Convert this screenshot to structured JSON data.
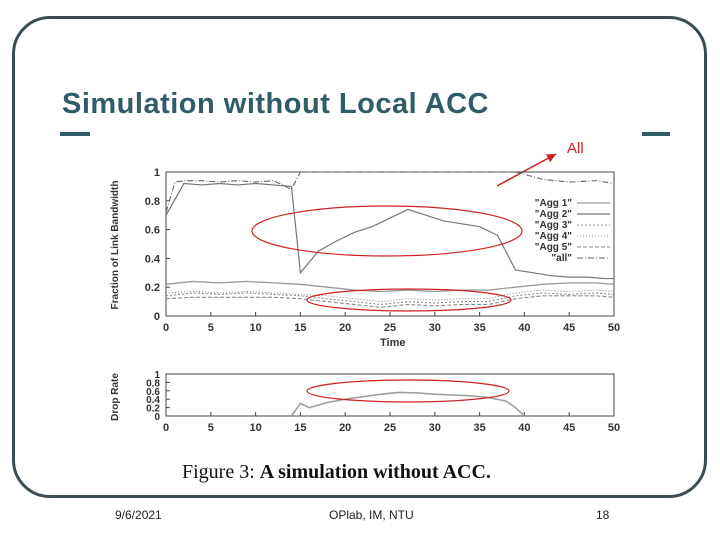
{
  "slide": {
    "title": "Simulation without Local ACC",
    "callout_label": "All",
    "caption_prefix": "Figure 3:",
    "caption_text": "A simulation without ACC.",
    "footer_date": "9/6/2021",
    "footer_center": "OPlab, IM, NTU",
    "page_number": "18"
  },
  "chart_data": [
    {
      "type": "line",
      "ylabel": "Fraction of Link Bandwidth",
      "xlabel": "Time",
      "xlim": [
        0,
        50
      ],
      "ylim": [
        0,
        1
      ],
      "xticks": [
        0,
        5,
        10,
        15,
        20,
        25,
        30,
        35,
        40,
        45,
        50
      ],
      "yticks": [
        0,
        0.2,
        0.4,
        0.6,
        0.8,
        1
      ],
      "legend": "top-right",
      "series": [
        {
          "name": "\"Agg 1\"",
          "x": [
            0,
            3,
            6,
            9,
            12,
            15,
            18,
            21,
            24,
            27,
            30,
            33,
            36,
            39,
            42,
            45,
            48,
            50
          ],
          "y": [
            0.22,
            0.24,
            0.23,
            0.24,
            0.23,
            0.22,
            0.2,
            0.18,
            0.17,
            0.18,
            0.17,
            0.18,
            0.18,
            0.2,
            0.22,
            0.23,
            0.23,
            0.22
          ]
        },
        {
          "name": "\"Agg 2\"",
          "x": [
            0,
            2,
            4,
            6,
            8,
            10,
            12,
            14,
            15,
            17,
            19,
            21,
            23,
            25,
            27,
            29,
            31,
            33,
            35,
            37,
            39,
            41,
            43,
            45,
            47,
            49,
            50
          ],
          "y": [
            0.7,
            0.92,
            0.91,
            0.92,
            0.91,
            0.92,
            0.91,
            0.9,
            0.3,
            0.45,
            0.52,
            0.58,
            0.62,
            0.68,
            0.74,
            0.7,
            0.66,
            0.64,
            0.62,
            0.56,
            0.32,
            0.3,
            0.28,
            0.27,
            0.27,
            0.26,
            0.26
          ]
        },
        {
          "name": "\"Agg 3\"",
          "x": [
            0,
            3,
            6,
            9,
            12,
            15,
            18,
            21,
            24,
            27,
            30,
            33,
            36,
            39,
            42,
            45,
            48,
            50
          ],
          "y": [
            0.14,
            0.16,
            0.15,
            0.16,
            0.15,
            0.14,
            0.12,
            0.1,
            0.08,
            0.1,
            0.09,
            0.1,
            0.1,
            0.14,
            0.16,
            0.15,
            0.16,
            0.15
          ]
        },
        {
          "name": "\"Agg 4\"",
          "x": [
            0,
            3,
            6,
            9,
            12,
            15,
            18,
            21,
            24,
            27,
            30,
            33,
            36,
            39,
            42,
            45,
            48,
            50
          ],
          "y": [
            0.16,
            0.17,
            0.16,
            0.17,
            0.16,
            0.15,
            0.14,
            0.12,
            0.1,
            0.12,
            0.11,
            0.12,
            0.12,
            0.16,
            0.18,
            0.17,
            0.18,
            0.17
          ]
        },
        {
          "name": "\"Agg 5\"",
          "x": [
            0,
            3,
            6,
            9,
            12,
            15,
            18,
            21,
            24,
            27,
            30,
            33,
            36,
            39,
            42,
            45,
            48,
            50
          ],
          "y": [
            0.12,
            0.13,
            0.13,
            0.13,
            0.13,
            0.12,
            0.1,
            0.08,
            0.06,
            0.08,
            0.07,
            0.08,
            0.08,
            0.12,
            0.14,
            0.14,
            0.14,
            0.13
          ]
        },
        {
          "name": "\"all\"",
          "x": [
            0,
            1,
            2,
            4,
            6,
            8,
            10,
            12,
            14,
            15,
            18,
            21,
            24,
            27,
            30,
            33,
            36,
            39,
            42,
            45,
            48,
            50
          ],
          "y": [
            0.72,
            0.93,
            0.94,
            0.94,
            0.93,
            0.94,
            0.93,
            0.94,
            0.88,
            1.0,
            1.0,
            1.0,
            1.0,
            1.0,
            1.0,
            1.0,
            1.0,
            1.0,
            0.95,
            0.93,
            0.94,
            0.92
          ]
        }
      ]
    },
    {
      "type": "line",
      "ylabel": "Drop Rate",
      "xlabel": "",
      "xlim": [
        0,
        50
      ],
      "ylim": [
        0,
        1
      ],
      "xticks": [
        0,
        5,
        10,
        15,
        20,
        25,
        30,
        35,
        40,
        45,
        50
      ],
      "yticks": [
        0,
        0.2,
        0.4,
        0.6,
        0.8,
        1
      ],
      "series": [
        {
          "name": "",
          "x": [
            14,
            15,
            16,
            18,
            20,
            22,
            24,
            26,
            28,
            30,
            32,
            34,
            36,
            38,
            39,
            40
          ],
          "y": [
            0,
            0.3,
            0.2,
            0.32,
            0.4,
            0.46,
            0.52,
            0.56,
            0.55,
            0.52,
            0.5,
            0.48,
            0.44,
            0.35,
            0.2,
            0
          ]
        }
      ]
    }
  ]
}
